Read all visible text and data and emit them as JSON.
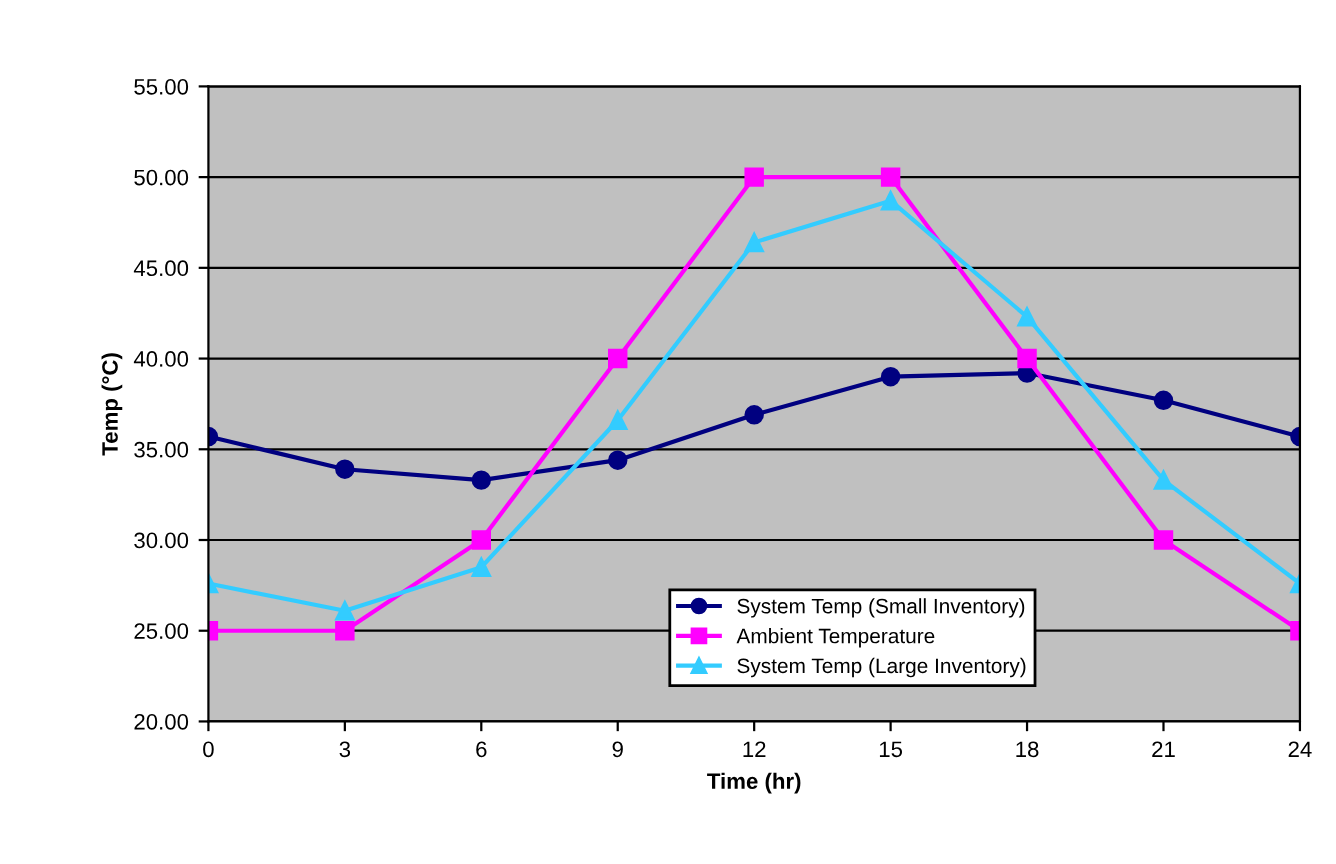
{
  "chart_data": {
    "type": "line",
    "xlabel": "Time (hr)",
    "ylabel": "Temp (°C)",
    "x": [
      0,
      3,
      6,
      9,
      12,
      15,
      18,
      21,
      24
    ],
    "series": [
      {
        "name": "System Temp (Small Inventory)",
        "color": "#000080",
        "marker": "circle",
        "values": [
          35.7,
          33.9,
          33.3,
          34.4,
          36.9,
          39.0,
          39.2,
          37.7,
          35.7
        ]
      },
      {
        "name": "Ambient Temperature",
        "color": "#ff00ff",
        "marker": "square",
        "values": [
          25,
          25,
          30,
          40,
          50,
          50,
          40,
          30,
          25
        ]
      },
      {
        "name": "System Temp (Large Inventory)",
        "color": "#33ccff",
        "marker": "triangle",
        "values": [
          27.6,
          26.1,
          28.5,
          36.6,
          46.4,
          48.7,
          42.3,
          33.3,
          27.6
        ]
      }
    ],
    "xlim": [
      0,
      24
    ],
    "xticks": [
      0,
      3,
      6,
      9,
      12,
      15,
      18,
      21,
      24
    ],
    "ylim": [
      20,
      55
    ],
    "yticks": [
      {
        "value": 20,
        "label": "20.00"
      },
      {
        "value": 25,
        "label": "25.00"
      },
      {
        "value": 30,
        "label": "30.00"
      },
      {
        "value": 35,
        "label": "35.00"
      },
      {
        "value": 40,
        "label": "40.00"
      },
      {
        "value": 45,
        "label": "45.00"
      },
      {
        "value": 50,
        "label": "50.00"
      },
      {
        "value": 55,
        "label": "55.00"
      }
    ],
    "grid": "y",
    "legend": "bottom",
    "line_style": "solid"
  }
}
